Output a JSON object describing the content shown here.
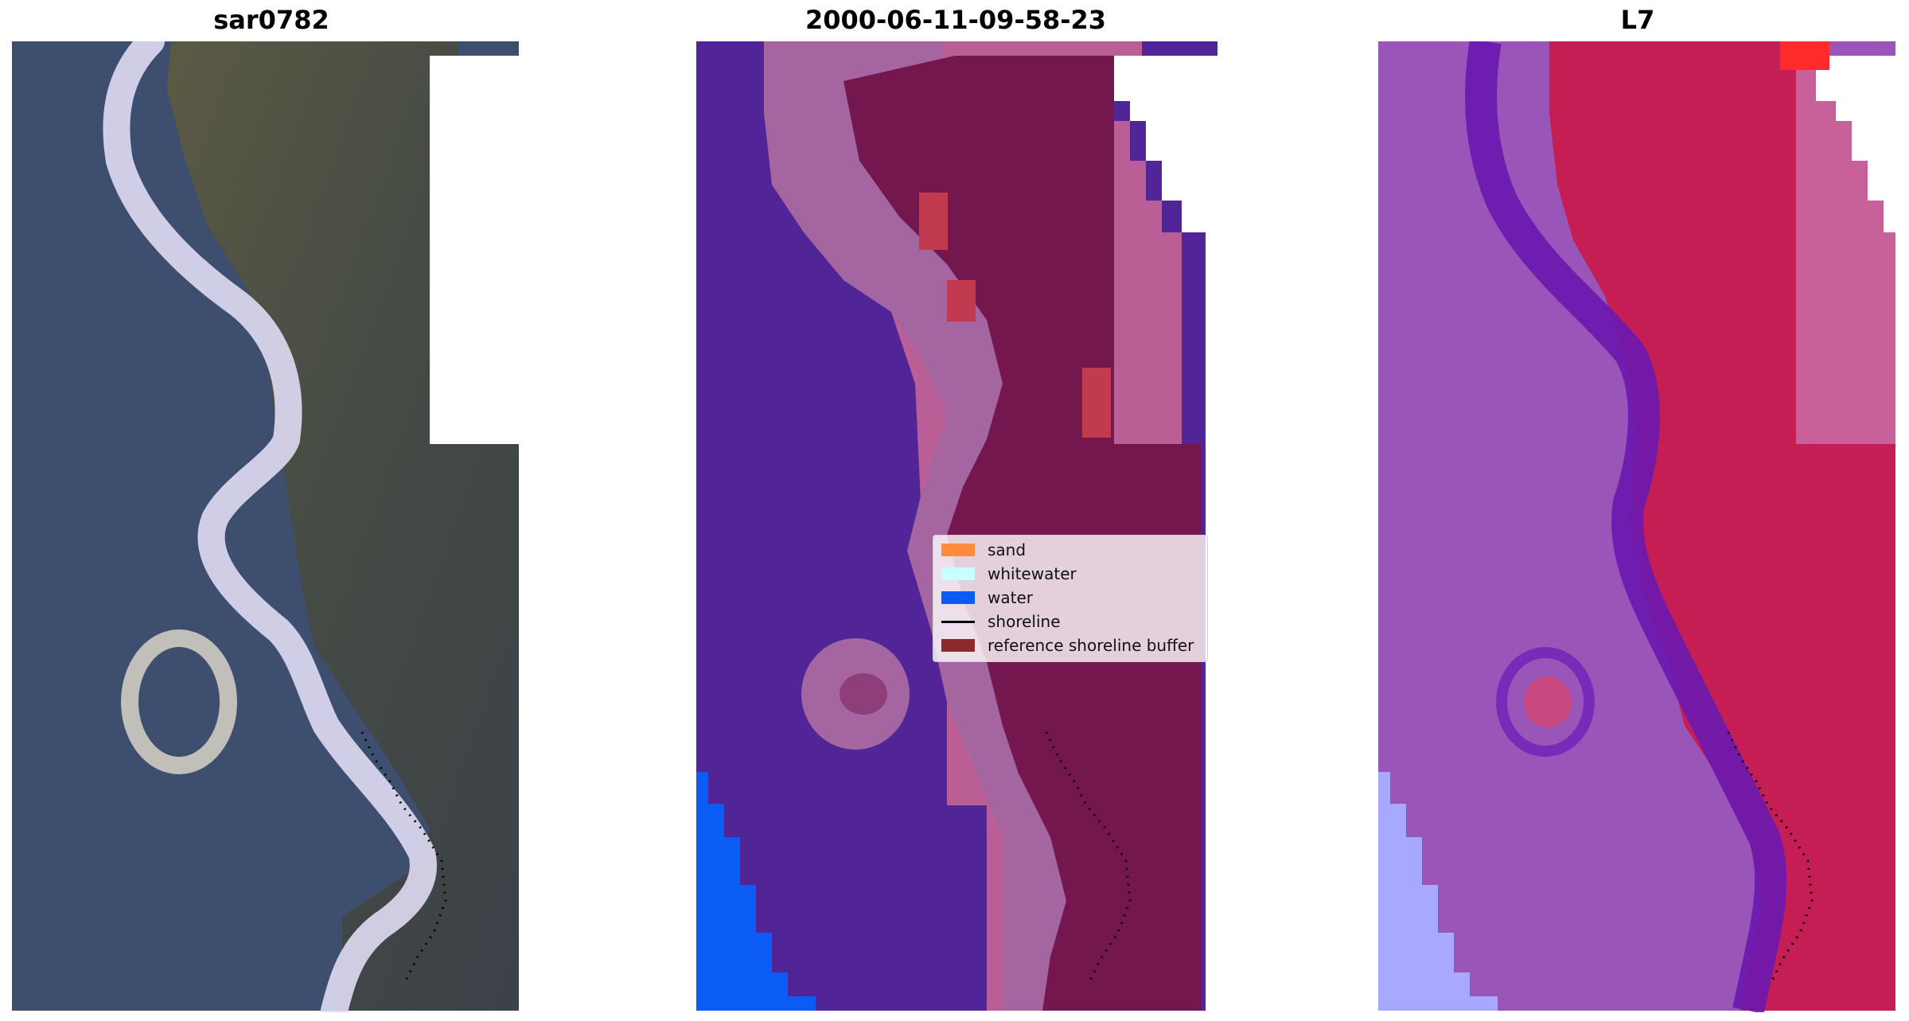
{
  "panels": [
    {
      "title": "sar0782"
    },
    {
      "title": "2000-06-11-09-58-23"
    },
    {
      "title": "L7"
    }
  ],
  "legend": {
    "items": [
      {
        "label": "sand",
        "color": "#ff8c3d"
      },
      {
        "label": "whitewater",
        "color": "#c8ffff"
      },
      {
        "label": "water",
        "color": "#0a5cf5"
      },
      {
        "label": "shoreline",
        "color": "#000000"
      },
      {
        "label": "reference shoreline buffer",
        "color": "#8b2a2a"
      }
    ]
  },
  "colors": {
    "rgb_water": "#3e4e6e",
    "rgb_land": "#4f5040",
    "rgb_sand": "#dcd8f0",
    "class_water": "#512598",
    "class_sand": "#a565a0",
    "class_buffer": "#74174f",
    "class_outside": "#b95f95",
    "class_ocean_blue": "#0a5cf5",
    "false_water": "#9a55b8",
    "false_dark": "#6a17b0",
    "false_land": "#c41e55",
    "false_light": "#a8a8ff"
  }
}
